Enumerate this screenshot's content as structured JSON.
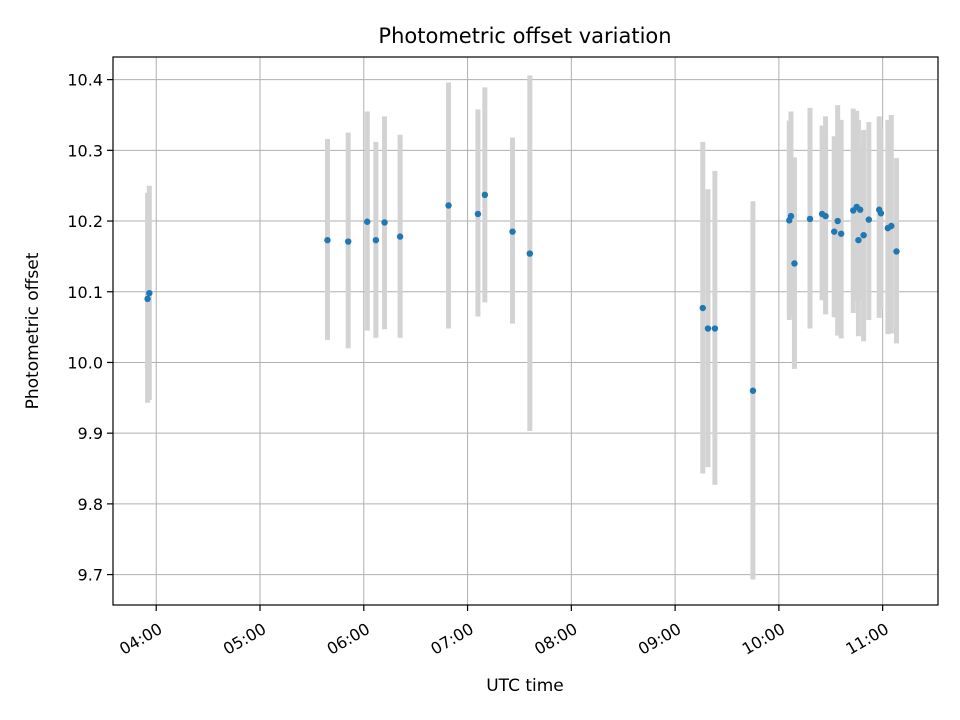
{
  "chart_data": {
    "type": "scatter",
    "title": "Photometric offset variation",
    "xlabel": "UTC time",
    "ylabel": "Photometric offset",
    "xlim": [
      "03:35",
      "11:32"
    ],
    "ylim": [
      9.657,
      10.432
    ],
    "x_ticks": [
      "04:00",
      "05:00",
      "06:00",
      "07:00",
      "08:00",
      "09:00",
      "10:00",
      "11:00"
    ],
    "y_ticks": [
      "9.7",
      "9.8",
      "9.9",
      "10.0",
      "10.1",
      "10.2",
      "10.3",
      "10.4"
    ],
    "grid": true,
    "colors": {
      "point": "#1f77b4",
      "error_bar": "#d3d3d3",
      "grid": "#b0b0b0"
    },
    "series": [
      {
        "x": [
          "03:55",
          "03:56",
          "05:39",
          "05:51",
          "06:02",
          "06:07",
          "06:12",
          "06:21",
          "06:49",
          "07:06",
          "07:10",
          "07:26",
          "07:36",
          "09:16",
          "09:19",
          "09:23",
          "09:45",
          "10:06",
          "10:07",
          "10:09",
          "10:18",
          "10:25",
          "10:27",
          "10:32",
          "10:34",
          "10:36",
          "10:43",
          "10:45",
          "10:46",
          "10:47",
          "10:49",
          "10:52",
          "10:58",
          "10:59",
          "11:03",
          "11:05",
          "11:08"
        ],
        "y": [
          10.09,
          10.098,
          10.173,
          10.171,
          10.199,
          10.173,
          10.198,
          10.178,
          10.222,
          10.21,
          10.237,
          10.185,
          10.154,
          10.077,
          10.048,
          10.048,
          9.96,
          10.201,
          10.207,
          10.14,
          10.203,
          10.21,
          10.207,
          10.185,
          10.2,
          10.182,
          10.215,
          10.22,
          10.173,
          10.216,
          10.18,
          10.202,
          10.216,
          10.211,
          10.19,
          10.193,
          10.157
        ],
        "err_low": [
          9.943,
          9.947,
          10.032,
          10.02,
          10.045,
          10.035,
          10.047,
          10.035,
          10.048,
          10.065,
          10.085,
          10.055,
          9.903,
          9.843,
          9.852,
          9.827,
          9.693,
          10.06,
          10.066,
          9.991,
          10.048,
          10.088,
          10.068,
          10.064,
          10.038,
          10.034,
          10.07,
          10.085,
          10.037,
          10.089,
          10.03,
          10.06,
          10.063,
          10.075,
          10.04,
          10.041,
          10.027
        ],
        "err_high": [
          10.24,
          10.25,
          10.316,
          10.325,
          10.355,
          10.312,
          10.348,
          10.322,
          10.396,
          10.358,
          10.389,
          10.318,
          10.406,
          10.312,
          10.245,
          10.271,
          10.228,
          10.342,
          10.355,
          10.29,
          10.36,
          10.335,
          10.348,
          10.32,
          10.364,
          10.343,
          10.359,
          10.356,
          10.343,
          10.305,
          10.329,
          10.34,
          10.348,
          10.332,
          10.343,
          10.35,
          10.289
        ]
      }
    ]
  }
}
